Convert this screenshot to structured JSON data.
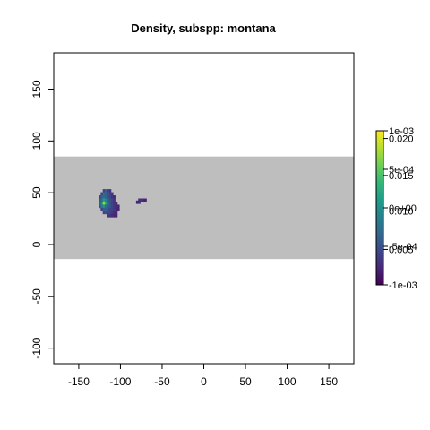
{
  "chart_data": {
    "type": "heatmap",
    "title": "Density, subspp: montana",
    "xlabel": "",
    "ylabel": "",
    "xlim": [
      -180,
      180
    ],
    "ylim": [
      -115,
      185
    ],
    "x_ticks": [
      -150,
      -100,
      -50,
      0,
      50,
      100,
      150
    ],
    "y_ticks": [
      -100,
      -50,
      0,
      50,
      100,
      150
    ],
    "background_band": {
      "y_from": -14,
      "y_to": 85,
      "color": "#bebebe"
    },
    "grid": false,
    "colormap": "viridis",
    "legend": {
      "placement": "right",
      "min_label": "-1e-03",
      "max_label": "1e-03",
      "ticks": [
        {
          "label": "1e-03",
          "frac": 1.0
        },
        {
          "label": "0.020",
          "frac": 0.95
        },
        {
          "label": "5e-04",
          "frac": 0.75
        },
        {
          "label": "0.015",
          "frac": 0.71
        },
        {
          "label": "0e+00",
          "frac": 0.5
        },
        {
          "label": "0.010",
          "frac": 0.48
        },
        {
          "label": "-5e-04",
          "frac": 0.25
        },
        {
          "label": "0.005",
          "frac": 0.23
        },
        {
          "label": "-1e-03",
          "frac": 0.0
        }
      ]
    },
    "cell_size": 2.5,
    "cells": [
      {
        "x": -120,
        "y": 52,
        "v": 0.2
      },
      {
        "x": -117.5,
        "y": 52,
        "v": 0.3
      },
      {
        "x": -115,
        "y": 52,
        "v": 0.2
      },
      {
        "x": -112.5,
        "y": 52,
        "v": 0.15
      },
      {
        "x": -122.5,
        "y": 49,
        "v": 0.2
      },
      {
        "x": -120,
        "y": 49,
        "v": 0.35
      },
      {
        "x": -117.5,
        "y": 49,
        "v": 0.3
      },
      {
        "x": -115,
        "y": 49,
        "v": 0.25
      },
      {
        "x": -112.5,
        "y": 49,
        "v": 0.2
      },
      {
        "x": -110,
        "y": 49,
        "v": 0.15
      },
      {
        "x": -125,
        "y": 46,
        "v": 0.2
      },
      {
        "x": -122.5,
        "y": 46,
        "v": 0.3
      },
      {
        "x": -120,
        "y": 46,
        "v": 0.35
      },
      {
        "x": -117.5,
        "y": 46,
        "v": 0.3
      },
      {
        "x": -115,
        "y": 46,
        "v": 0.25
      },
      {
        "x": -112.5,
        "y": 46,
        "v": 0.2
      },
      {
        "x": -110,
        "y": 46,
        "v": 0.15
      },
      {
        "x": -107.5,
        "y": 46,
        "v": 0.12
      },
      {
        "x": -125,
        "y": 43,
        "v": 0.25
      },
      {
        "x": -122.5,
        "y": 43,
        "v": 0.35
      },
      {
        "x": -120,
        "y": 43,
        "v": 0.55
      },
      {
        "x": -117.5,
        "y": 43,
        "v": 0.45
      },
      {
        "x": -115,
        "y": 43,
        "v": 0.3
      },
      {
        "x": -112.5,
        "y": 43,
        "v": 0.25
      },
      {
        "x": -110,
        "y": 43,
        "v": 0.2
      },
      {
        "x": -107.5,
        "y": 43,
        "v": 0.15
      },
      {
        "x": -125,
        "y": 40,
        "v": 0.3
      },
      {
        "x": -122.5,
        "y": 40,
        "v": 0.45
      },
      {
        "x": -120,
        "y": 40,
        "v": 0.85
      },
      {
        "x": -117.5,
        "y": 40,
        "v": 0.6
      },
      {
        "x": -115,
        "y": 40,
        "v": 0.35
      },
      {
        "x": -112.5,
        "y": 40,
        "v": 0.25
      },
      {
        "x": -110,
        "y": 40,
        "v": 0.2
      },
      {
        "x": -107.5,
        "y": 40,
        "v": 0.15
      },
      {
        "x": -105,
        "y": 40,
        "v": 0.12
      },
      {
        "x": -125,
        "y": 37,
        "v": 0.25
      },
      {
        "x": -122.5,
        "y": 37,
        "v": 0.4
      },
      {
        "x": -120,
        "y": 37,
        "v": 0.5
      },
      {
        "x": -117.5,
        "y": 37,
        "v": 0.35
      },
      {
        "x": -115,
        "y": 37,
        "v": 0.3
      },
      {
        "x": -112.5,
        "y": 37,
        "v": 0.25
      },
      {
        "x": -110,
        "y": 37,
        "v": 0.2
      },
      {
        "x": -107.5,
        "y": 37,
        "v": 0.15
      },
      {
        "x": -105,
        "y": 37,
        "v": 0.12
      },
      {
        "x": -102.5,
        "y": 37,
        "v": 0.1
      },
      {
        "x": -122.5,
        "y": 34,
        "v": 0.2
      },
      {
        "x": -120,
        "y": 34,
        "v": 0.3
      },
      {
        "x": -117.5,
        "y": 34,
        "v": 0.3
      },
      {
        "x": -115,
        "y": 34,
        "v": 0.25
      },
      {
        "x": -112.5,
        "y": 34,
        "v": 0.2
      },
      {
        "x": -110,
        "y": 34,
        "v": 0.2
      },
      {
        "x": -107.5,
        "y": 34,
        "v": 0.15
      },
      {
        "x": -105,
        "y": 34,
        "v": 0.12
      },
      {
        "x": -102.5,
        "y": 34,
        "v": 0.1
      },
      {
        "x": -120,
        "y": 31,
        "v": 0.2
      },
      {
        "x": -117.5,
        "y": 31,
        "v": 0.25
      },
      {
        "x": -115,
        "y": 31,
        "v": 0.2
      },
      {
        "x": -112.5,
        "y": 31,
        "v": 0.2
      },
      {
        "x": -110,
        "y": 31,
        "v": 0.15
      },
      {
        "x": -107.5,
        "y": 31,
        "v": 0.12
      },
      {
        "x": -105,
        "y": 31,
        "v": 0.1
      },
      {
        "x": -115,
        "y": 28,
        "v": 0.15
      },
      {
        "x": -112.5,
        "y": 28,
        "v": 0.15
      },
      {
        "x": -110,
        "y": 28,
        "v": 0.12
      },
      {
        "x": -107.5,
        "y": 28,
        "v": 0.1
      },
      {
        "x": -105,
        "y": 28,
        "v": 0.1
      },
      {
        "x": -77.5,
        "y": 43,
        "v": 0.12
      },
      {
        "x": -75,
        "y": 43,
        "v": 0.15
      },
      {
        "x": -72.5,
        "y": 43,
        "v": 0.12
      },
      {
        "x": -70,
        "y": 43,
        "v": 0.1
      },
      {
        "x": -80,
        "y": 41,
        "v": 0.1
      },
      {
        "x": -77.5,
        "y": 41,
        "v": 0.12
      }
    ]
  }
}
